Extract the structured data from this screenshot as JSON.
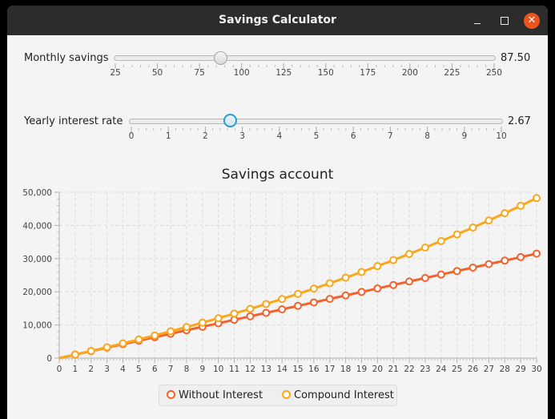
{
  "window": {
    "title": "Savings Calculator",
    "controls": {
      "minimize": "minimize-icon",
      "maximize": "maximize-icon",
      "close": "close-icon"
    }
  },
  "sliders": {
    "monthly": {
      "label": "Monthly savings",
      "value": "87.50",
      "numeric_value": 87.5,
      "min": 25,
      "max": 250,
      "ticks": [
        "25",
        "50",
        "75",
        "100",
        "125",
        "150",
        "175",
        "200",
        "225",
        "250"
      ]
    },
    "rate": {
      "label": "Yearly interest rate",
      "value": "2.67",
      "numeric_value": 2.67,
      "min": 0,
      "max": 10,
      "ticks": [
        "0",
        "1",
        "2",
        "3",
        "4",
        "5",
        "6",
        "7",
        "8",
        "9",
        "10"
      ]
    }
  },
  "chart_data": {
    "type": "line",
    "title": "Savings account",
    "xlabel": "",
    "ylabel": "",
    "xlim": [
      0,
      30
    ],
    "ylim": [
      0,
      50000
    ],
    "grid": true,
    "legend_position": "bottom",
    "x": [
      0,
      1,
      2,
      3,
      4,
      5,
      6,
      7,
      8,
      9,
      10,
      11,
      12,
      13,
      14,
      15,
      16,
      17,
      18,
      19,
      20,
      21,
      22,
      23,
      24,
      25,
      26,
      27,
      28,
      29,
      30
    ],
    "y_ticks": [
      "0",
      "10,000",
      "20,000",
      "30,000",
      "40,000",
      "50,000"
    ],
    "x_ticks": [
      "0",
      "1",
      "2",
      "3",
      "4",
      "5",
      "6",
      "7",
      "8",
      "9",
      "10",
      "11",
      "12",
      "13",
      "14",
      "15",
      "16",
      "17",
      "18",
      "19",
      "20",
      "21",
      "22",
      "23",
      "24",
      "25",
      "26",
      "27",
      "28",
      "29",
      "30"
    ],
    "series": [
      {
        "name": "Without Interest",
        "color": "#f3622d",
        "values": [
          0,
          1050,
          2100,
          3150,
          4200,
          5250,
          6300,
          7350,
          8400,
          9450,
          10500,
          11550,
          12600,
          13650,
          14700,
          15750,
          16800,
          17850,
          18900,
          19950,
          21000,
          22050,
          23100,
          24150,
          25200,
          26250,
          27300,
          28350,
          29400,
          30450,
          31500
        ]
      },
      {
        "name": "Compound Interest",
        "color": "#fba71b",
        "values": [
          0,
          1064,
          2157,
          3279,
          4432,
          5615,
          6831,
          8080,
          9362,
          10679,
          12032,
          13421,
          14847,
          16312,
          17817,
          19362,
          20949,
          22578,
          24252,
          25970,
          27736,
          29549,
          31411,
          33323,
          35287,
          37304,
          39376,
          41503,
          43688,
          45932,
          48236
        ]
      }
    ]
  },
  "legend": {
    "items": [
      {
        "label": "Without Interest",
        "color": "#f3622d"
      },
      {
        "label": "Compound Interest",
        "color": "#fba71b"
      }
    ]
  }
}
